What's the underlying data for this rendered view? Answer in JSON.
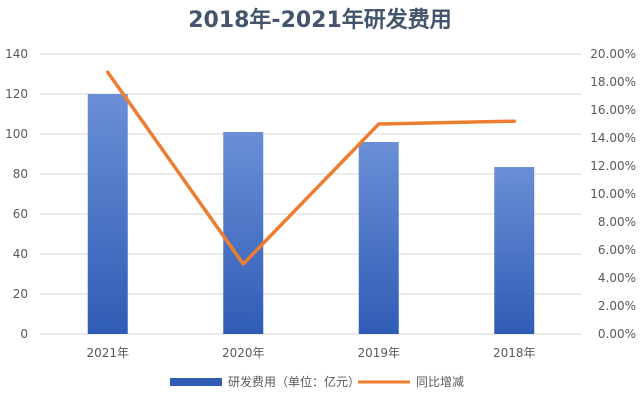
{
  "chart_data": {
    "type": "bar",
    "title": "2018年-2021年研发费用",
    "categories": [
      "2021年",
      "2020年",
      "2019年",
      "2018年"
    ],
    "y_left": {
      "min": 0,
      "max": 140,
      "step": 20,
      "ticks": [
        "0",
        "20",
        "40",
        "60",
        "80",
        "100",
        "120",
        "140"
      ]
    },
    "y_right": {
      "min": 0,
      "max": 0.2,
      "step": 0.02,
      "ticks": [
        "0.00%",
        "2.00%",
        "4.00%",
        "6.00%",
        "8.00%",
        "10.00%",
        "12.00%",
        "14.00%",
        "16.00%",
        "18.00%",
        "20.00%"
      ]
    },
    "series": [
      {
        "name": "研发费用（单位：亿元）",
        "type": "bar",
        "axis": "left",
        "values": [
          120,
          101,
          96,
          83.5
        ]
      },
      {
        "name": "同比增减",
        "type": "line",
        "axis": "right",
        "values": [
          0.187,
          0.05,
          0.15,
          0.152
        ]
      }
    ],
    "grid": true,
    "legend_position": "bottom",
    "colors": {
      "bar_top": "#6a8fd6",
      "bar_bottom": "#2f5cb5",
      "line": "#ed7d31",
      "grid": "#d9d9d9",
      "title": "#44546a"
    }
  }
}
